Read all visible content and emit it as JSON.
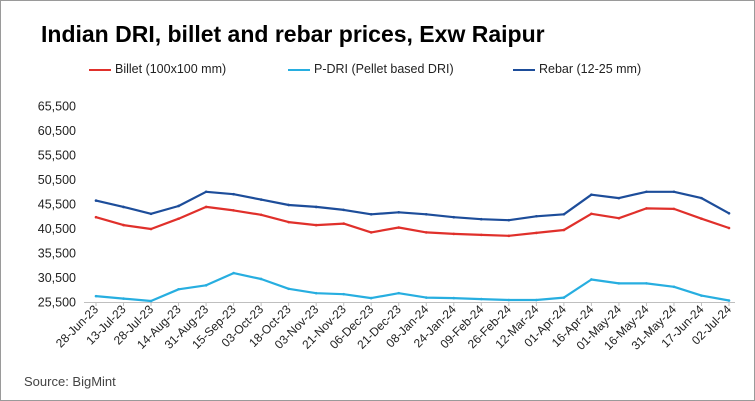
{
  "title": "Indian DRI, billet and rebar prices, Exw Raipur",
  "source": "Source: BigMint",
  "chart_data": {
    "type": "line",
    "title": "Indian DRI, billet and rebar prices, Exw Raipur",
    "xlabel": "",
    "ylabel": "",
    "ylim": [
      25500,
      65500
    ],
    "yticks": [
      25500,
      30500,
      35500,
      40500,
      45500,
      50500,
      55500,
      60500,
      65500
    ],
    "ytick_labels": [
      "25,500",
      "30,500",
      "35,500",
      "40,500",
      "45,500",
      "50,500",
      "55,500",
      "60,500",
      "65,500"
    ],
    "grid": false,
    "legend_position": "top",
    "categories": [
      "28-Jun-23",
      "13-Jul-23",
      "28-Jul-23",
      "14-Aug-23",
      "31-Aug-23",
      "15-Sep-23",
      "03-Oct-23",
      "18-Oct-23",
      "03-Nov-23",
      "21-Nov-23",
      "06-Dec-23",
      "21-Dec-23",
      "08-Jan-24",
      "24-Jan-24",
      "09-Feb-24",
      "26-Feb-24",
      "12-Mar-24",
      "01-Apr-24",
      "16-Apr-24",
      "01-May-24",
      "16-May-24",
      "31-May-24",
      "17-Jun-24",
      "02-Jul-24"
    ],
    "series": [
      {
        "name": "Billet (100x100 mm)",
        "color": "#e0302b",
        "values": [
          42800,
          41200,
          40400,
          42500,
          44900,
          44200,
          43300,
          41800,
          41200,
          41500,
          39700,
          40700,
          39700,
          39400,
          39200,
          39000,
          39600,
          40200,
          43500,
          42600,
          44600,
          44500,
          42500,
          40600
        ]
      },
      {
        "name": "P-DRI (Pellet based DRI)",
        "color": "#27aee0",
        "values": [
          26700,
          26200,
          25700,
          28100,
          28900,
          31400,
          30200,
          28200,
          27300,
          27100,
          26300,
          27300,
          26400,
          26300,
          26100,
          25900,
          25900,
          26400,
          30100,
          29300,
          29300,
          28600,
          26800,
          25800
        ]
      },
      {
        "name": "Rebar (12-25 mm)",
        "color": "#1d4d9a",
        "values": [
          46200,
          44900,
          43500,
          45100,
          48000,
          47500,
          46400,
          45300,
          44900,
          44300,
          43400,
          43800,
          43400,
          42800,
          42400,
          42200,
          43000,
          43400,
          47400,
          46700,
          48000,
          48000,
          46700,
          43600
        ]
      }
    ]
  }
}
